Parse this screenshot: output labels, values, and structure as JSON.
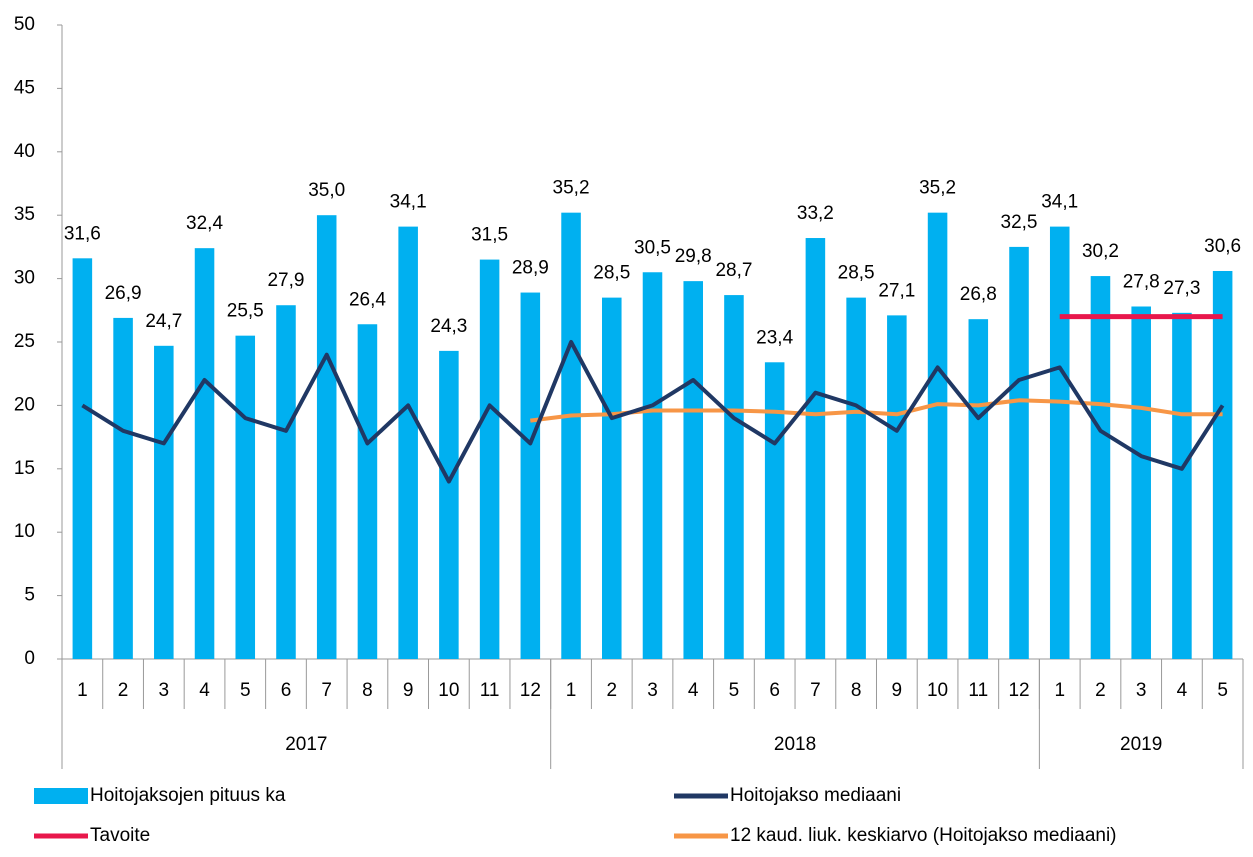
{
  "chart_data": {
    "type": "bar",
    "categories": [
      "1",
      "2",
      "3",
      "4",
      "5",
      "6",
      "7",
      "8",
      "9",
      "10",
      "11",
      "12",
      "1",
      "2",
      "3",
      "4",
      "5",
      "6",
      "7",
      "8",
      "9",
      "10",
      "11",
      "12",
      "1",
      "2",
      "3",
      "4",
      "5"
    ],
    "groups": [
      {
        "label": "2017",
        "count": 12
      },
      {
        "label": "2018",
        "count": 12
      },
      {
        "label": "2019",
        "count": 5
      }
    ],
    "series": [
      {
        "name": "Hoitojaksojen pituus ka",
        "type": "bar",
        "color": "#00b0f0",
        "values": [
          31.6,
          26.9,
          24.7,
          32.4,
          25.5,
          27.9,
          35.0,
          26.4,
          34.1,
          24.3,
          31.5,
          28.9,
          35.2,
          28.5,
          30.5,
          29.8,
          28.7,
          23.4,
          33.2,
          28.5,
          27.1,
          35.2,
          26.8,
          32.5,
          34.1,
          30.2,
          27.8,
          27.3,
          30.6
        ],
        "value_labels": [
          "31,6",
          "26,9",
          "24,7",
          "32,4",
          "25,5",
          "27,9",
          "35,0",
          "26,4",
          "34,1",
          "24,3",
          "31,5",
          "28,9",
          "35,2",
          "28,5",
          "30,5",
          "29,8",
          "28,7",
          "23,4",
          "33,2",
          "28,5",
          "27,1",
          "35,2",
          "26,8",
          "32,5",
          "34,1",
          "30,2",
          "27,8",
          "27,3",
          "30,6"
        ]
      },
      {
        "name": "Hoitojakso mediaani",
        "type": "line",
        "color": "#203864",
        "values": [
          20,
          18,
          17,
          22,
          19,
          18,
          24,
          17,
          20,
          14,
          20,
          17,
          25,
          19,
          20,
          22,
          19,
          17,
          21,
          20,
          18,
          23,
          19,
          22,
          23,
          18,
          16,
          15,
          20
        ]
      },
      {
        "name": "Tavoite",
        "type": "line",
        "color": "#e8174b",
        "values": [
          null,
          null,
          null,
          null,
          null,
          null,
          null,
          null,
          null,
          null,
          null,
          null,
          null,
          null,
          null,
          null,
          null,
          null,
          null,
          null,
          null,
          null,
          null,
          null,
          27,
          27,
          27,
          27,
          27
        ]
      },
      {
        "name": "12 kaud. liuk. keskiarvo (Hoitojakso mediaani)",
        "type": "line",
        "color": "#f79646",
        "values": [
          null,
          null,
          null,
          null,
          null,
          null,
          null,
          null,
          null,
          null,
          null,
          18.8,
          19.2,
          19.3,
          19.6,
          19.6,
          19.6,
          19.5,
          19.3,
          19.5,
          19.3,
          20.1,
          20.0,
          20.4,
          20.3,
          20.1,
          19.8,
          19.3,
          19.3
        ]
      }
    ],
    "ylim": [
      0,
      50
    ],
    "yticks": [
      0,
      5,
      10,
      15,
      20,
      25,
      30,
      35,
      40,
      45,
      50
    ],
    "grid": false
  }
}
